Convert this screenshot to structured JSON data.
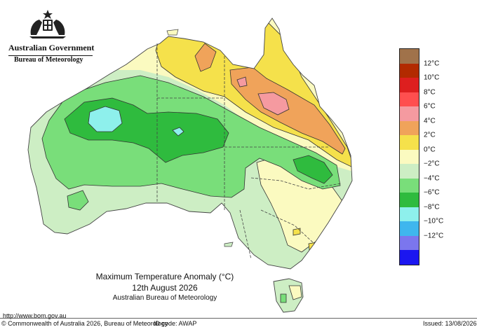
{
  "header": {
    "government": "Australian Government",
    "bureau": "Bureau of Meteorology"
  },
  "map": {
    "title": "Maximum Temperature Anomaly (°C)",
    "date": "12th August 2026",
    "source": "Australian Bureau of Meteorology",
    "region": "Australia"
  },
  "legend": {
    "top_swatch_color": "#a0724a",
    "items": [
      {
        "label": "12°C",
        "color": "#b22a00"
      },
      {
        "label": "10°C",
        "color": "#dd1f1f"
      },
      {
        "label": "8°C",
        "color": "#ff4f4f"
      },
      {
        "label": "6°C",
        "color": "#f59aa0"
      },
      {
        "label": "4°C",
        "color": "#f0a35a"
      },
      {
        "label": "2°C",
        "color": "#f5e14b"
      },
      {
        "label": "0°C",
        "color": "#fbfac0"
      },
      {
        "label": "−2°C",
        "color": "#cdeec4"
      },
      {
        "label": "−4°C",
        "color": "#79de7a"
      },
      {
        "label": "−6°C",
        "color": "#2fbb3e"
      },
      {
        "label": "−8°C",
        "color": "#8ef0ec"
      },
      {
        "label": "−10°C",
        "color": "#3fb6ee"
      },
      {
        "label": "−12°C",
        "color": "#7b76ee"
      }
    ],
    "bottom_swatch_color": "#1b16f0"
  },
  "footer": {
    "url": "http://www.bom.gov.au",
    "copyright": "© Commonwealth of Australia 2026, Bureau of Meteorology",
    "id_code": "ID code: AWAP",
    "issued": "Issued: 13/08/2026"
  }
}
